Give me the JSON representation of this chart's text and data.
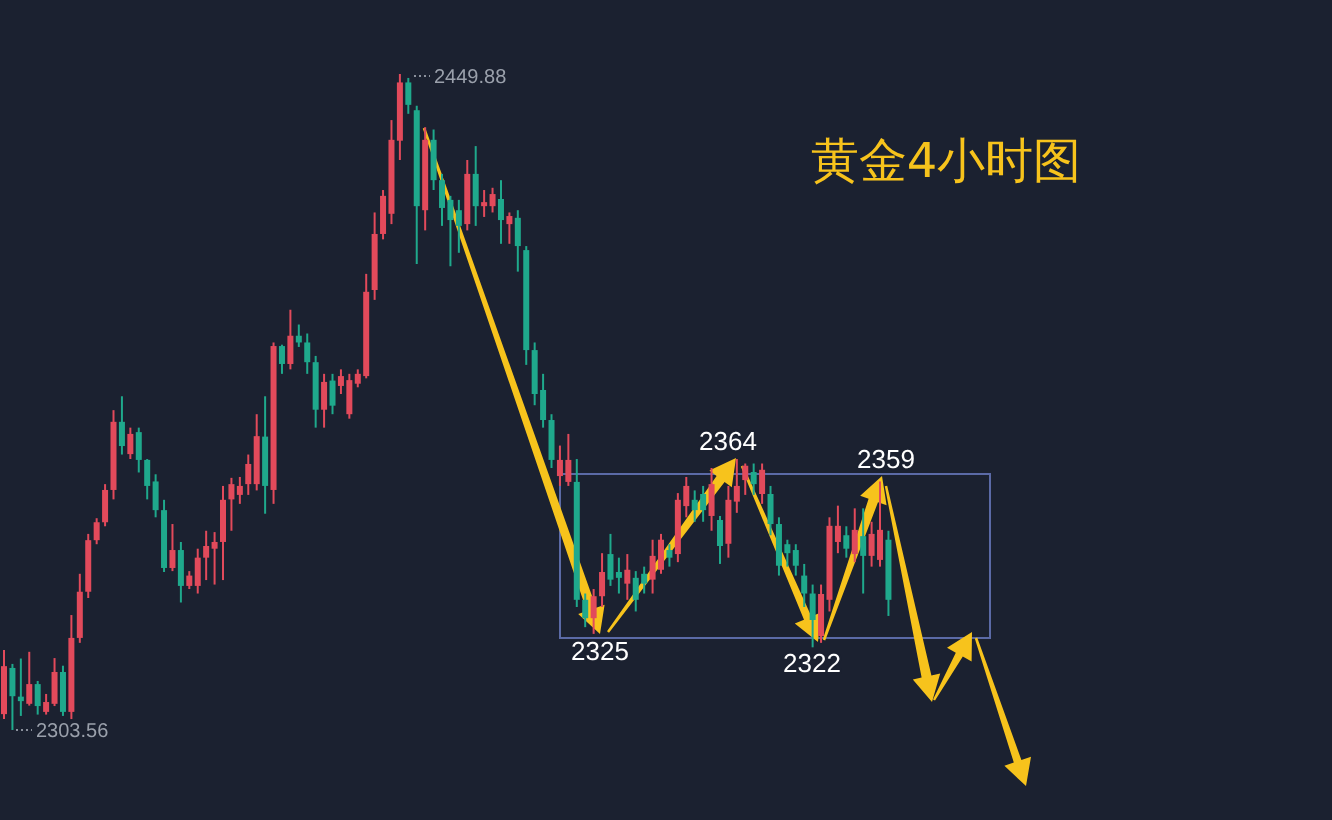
{
  "chart_data": {
    "type": "candlestick",
    "title": "黄金4小时图",
    "categories": [
      null,
      null,
      null,
      null,
      null,
      null,
      null,
      null,
      null,
      null,
      null,
      null,
      null,
      null,
      null,
      null,
      null,
      null,
      null,
      null,
      null,
      null,
      null,
      null,
      null,
      null,
      null,
      null,
      null,
      null,
      null,
      null,
      null,
      null,
      null,
      null,
      null,
      null,
      null,
      null,
      null,
      null,
      null,
      null,
      null,
      null,
      null,
      null,
      null,
      null,
      null,
      null,
      null,
      null,
      null,
      null,
      null,
      null,
      null,
      null,
      null,
      null,
      null,
      null,
      null,
      null,
      null,
      null,
      null,
      null,
      null,
      null,
      null,
      null,
      null,
      null,
      null,
      null,
      null,
      null,
      null,
      null,
      null,
      null,
      null,
      null,
      null,
      null,
      null,
      null,
      null,
      null,
      null,
      null,
      null,
      null,
      null,
      null,
      null,
      null,
      null,
      null,
      null,
      null,
      null,
      null
    ],
    "ohlc": [
      [
        2307.1,
        2321.4,
        2306,
        2317.8
      ],
      [
        2317.4,
        2318.3,
        2303.56,
        2311.1
      ],
      [
        2311,
        2319.5,
        2306.7,
        2310
      ],
      [
        2309.4,
        2321,
        2309,
        2313.8
      ],
      [
        2313.8,
        2314.5,
        2307,
        2308.9
      ],
      [
        2307.6,
        2311.6,
        2307,
        2309.8
      ],
      [
        2309.4,
        2319.6,
        2308.9,
        2316.5
      ],
      [
        2316.5,
        2317.9,
        2306.7,
        2307.6
      ],
      [
        2307.6,
        2329.2,
        2306,
        2324.1
      ],
      [
        2324.1,
        2338.4,
        2323,
        2334.4
      ],
      [
        2334.4,
        2347.3,
        2333,
        2345.9
      ],
      [
        2345.9,
        2350.8,
        2345,
        2349.9
      ],
      [
        2349.9,
        2358.4,
        2349,
        2357.1
      ],
      [
        2357.1,
        2374.9,
        2355,
        2372.3
      ],
      [
        2372.3,
        2378,
        2365,
        2366.9
      ],
      [
        2365.1,
        2371,
        2364,
        2369.6
      ],
      [
        2370,
        2371,
        2361,
        2363.8
      ],
      [
        2363.8,
        2364,
        2355,
        2358
      ],
      [
        2359,
        2360.6,
        2351,
        2352.6
      ],
      [
        2352.6,
        2354.9,
        2338.8,
        2339.7
      ],
      [
        2339.7,
        2349.5,
        2339,
        2343.7
      ],
      [
        2343.7,
        2345.5,
        2332,
        2335.7
      ],
      [
        2335.7,
        2339,
        2335,
        2338
      ],
      [
        2335.7,
        2344,
        2334,
        2342
      ],
      [
        2342,
        2348,
        2337,
        2344.6
      ],
      [
        2344,
        2347.7,
        2336,
        2345.5
      ],
      [
        2345.5,
        2358,
        2337,
        2354.9
      ],
      [
        2355,
        2359.8,
        2348,
        2358.4
      ],
      [
        2356,
        2360,
        2354,
        2358
      ],
      [
        2358.4,
        2365,
        2356,
        2362.9
      ],
      [
        2358.4,
        2374,
        2357,
        2369.1
      ],
      [
        2369,
        2378,
        2351.8,
        2358
      ],
      [
        2357.1,
        2390,
        2354,
        2389.2
      ],
      [
        2389.2,
        2389.5,
        2383,
        2385.2
      ],
      [
        2385.2,
        2397.3,
        2384,
        2391.5
      ],
      [
        2391.5,
        2394,
        2389,
        2390
      ],
      [
        2390,
        2392,
        2383,
        2385.6
      ],
      [
        2385.6,
        2387,
        2371,
        2375
      ],
      [
        2375,
        2383,
        2371,
        2381.2
      ],
      [
        2381.5,
        2383,
        2374,
        2375.9
      ],
      [
        2380.3,
        2384,
        2378.5,
        2382.5
      ],
      [
        2374,
        2383,
        2373,
        2381.6
      ],
      [
        2380.8,
        2384,
        2380,
        2383
      ],
      [
        2382.5,
        2405.3,
        2382,
        2401.3
      ],
      [
        2401.7,
        2419,
        2399.5,
        2414.2
      ],
      [
        2414.2,
        2424,
        2413,
        2422.7
      ],
      [
        2418.7,
        2439.6,
        2416.4,
        2435.2
      ],
      [
        2435,
        2449.88,
        2430.7,
        2448
      ],
      [
        2448,
        2449,
        2441,
        2443
      ],
      [
        2441.8,
        2442.8,
        2407.5,
        2420.4
      ],
      [
        2419.5,
        2438,
        2415,
        2435.2
      ],
      [
        2435.2,
        2437.5,
        2424,
        2426.2
      ],
      [
        2426.2,
        2427.6,
        2416,
        2420
      ],
      [
        2421.8,
        2422.7,
        2407,
        2417.3
      ],
      [
        2419.5,
        2421.8,
        2410,
        2416
      ],
      [
        2416.4,
        2430.7,
        2415,
        2427.6
      ],
      [
        2427.6,
        2433.8,
        2416,
        2420.4
      ],
      [
        2420.4,
        2424,
        2418,
        2421.3
      ],
      [
        2420.4,
        2424.5,
        2419,
        2423.1
      ],
      [
        2422,
        2426.2,
        2412,
        2417.3
      ],
      [
        2416.4,
        2419,
        2412,
        2418.2
      ],
      [
        2417.8,
        2419.5,
        2405.8,
        2411.5
      ],
      [
        2410.6,
        2411.5,
        2385,
        2388.3
      ],
      [
        2388.3,
        2390,
        2376,
        2378.5
      ],
      [
        2379.4,
        2383,
        2371,
        2372.7
      ],
      [
        2372.7,
        2374,
        2362,
        2363.8
      ],
      [
        2360.2,
        2367,
        2358,
        2363.8
      ],
      [
        2358.9,
        2369.6,
        2358,
        2363.8
      ],
      [
        2358.9,
        2364,
        2331,
        2332.6
      ],
      [
        2332.6,
        2334,
        2326.5,
        2328.5
      ],
      [
        2328.5,
        2335,
        2325,
        2333.4
      ],
      [
        2333.4,
        2343,
        2331,
        2338.8
      ],
      [
        2342.8,
        2347.3,
        2335.7,
        2337.1
      ],
      [
        2338.8,
        2342,
        2334,
        2337.5
      ],
      [
        2336.2,
        2342.8,
        2332.6,
        2339.3
      ],
      [
        2337.5,
        2339,
        2330,
        2332.6
      ],
      [
        2338.4,
        2340,
        2334,
        2336.2
      ],
      [
        2337.1,
        2346,
        2334,
        2342.4
      ],
      [
        2339.3,
        2347.3,
        2338.4,
        2346
      ],
      [
        2343.7,
        2345,
        2340,
        2342
      ],
      [
        2342.8,
        2356.4,
        2341,
        2354.9
      ],
      [
        2353.5,
        2360,
        2351,
        2358
      ],
      [
        2354.9,
        2357,
        2350,
        2352.6
      ],
      [
        2356.2,
        2358,
        2350,
        2352.6
      ],
      [
        2351.3,
        2362,
        2348,
        2358.4
      ],
      [
        2350.4,
        2351.3,
        2340.6,
        2344.6
      ],
      [
        2345.1,
        2358,
        2342,
        2354.9
      ],
      [
        2354.5,
        2364,
        2352,
        2358
      ],
      [
        2359.3,
        2363,
        2356,
        2362.5
      ],
      [
        2361.1,
        2363,
        2356,
        2358.4
      ],
      [
        2356.2,
        2363,
        2354,
        2361.6
      ],
      [
        2356.2,
        2358,
        2347,
        2349.5
      ],
      [
        2349.5,
        2351,
        2338,
        2340.2
      ],
      [
        2345,
        2346,
        2340,
        2343
      ],
      [
        2343.7,
        2345,
        2338,
        2340.2
      ],
      [
        2338,
        2340.6,
        2331,
        2334
      ],
      [
        2334,
        2336,
        2322,
        2328.1
      ],
      [
        2324.5,
        2336,
        2323,
        2333.9
      ],
      [
        2332.6,
        2351,
        2330,
        2349.1
      ],
      [
        2345.5,
        2353.6,
        2343,
        2349.1
      ],
      [
        2347,
        2349,
        2342,
        2344
      ],
      [
        2342.8,
        2353,
        2341,
        2348.2
      ],
      [
        2346.8,
        2353,
        2334,
        2342.4
      ],
      [
        2342.4,
        2350,
        2340,
        2347.3
      ],
      [
        2341.5,
        2359,
        2340,
        2348.2
      ],
      [
        2346,
        2348,
        2329,
        2332.6
      ]
    ],
    "annotations": [
      "2303.56",
      "2449.88",
      "2325",
      "2364",
      "2322",
      "2359"
    ]
  }
}
